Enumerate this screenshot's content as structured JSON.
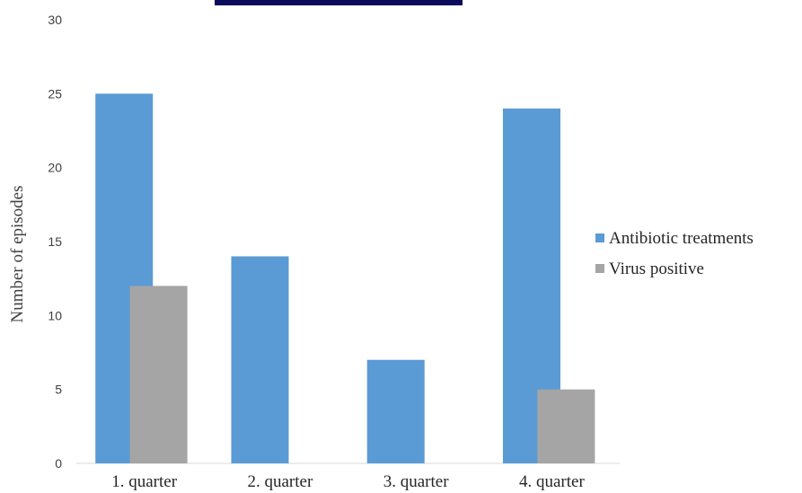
{
  "chart_data": {
    "type": "bar",
    "title": "",
    "xlabel": "",
    "ylabel": "Number of episodes",
    "ylim": [
      0,
      30
    ],
    "yticks": [
      0,
      5,
      10,
      15,
      20,
      25,
      30
    ],
    "categories": [
      "1. quarter",
      "2. quarter",
      "3. quarter",
      "4. quarter"
    ],
    "series": [
      {
        "name": "Antibiotic treatments",
        "color": "#5B9BD5",
        "values": [
          25,
          14,
          7,
          24
        ]
      },
      {
        "name": "Virus positive",
        "color": "#A5A5A5",
        "values": [
          12,
          0,
          0,
          5
        ]
      }
    ],
    "grid": false,
    "legend_position": "right"
  },
  "header_bar_color": "#0B0B5C"
}
